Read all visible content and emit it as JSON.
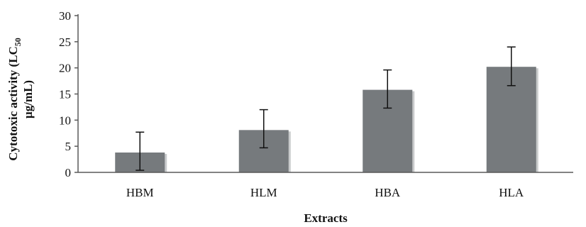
{
  "chart_data": {
    "type": "bar",
    "categories": [
      "HBM",
      "HLM",
      "HBA",
      "HLA"
    ],
    "values": [
      3.8,
      8.1,
      15.8,
      20.2
    ],
    "error_low": [
      0.4,
      4.7,
      12.3,
      16.6
    ],
    "error_high": [
      7.7,
      12.0,
      19.6,
      24.0
    ],
    "xlabel": "Extracts",
    "ylabel_line1": "Cytotoxic activity (LC",
    "ylabel_subscript": "50",
    "ylabel_line2": "µg/mL)",
    "ylim": [
      0,
      30
    ],
    "yticks": [
      "0",
      "5",
      "10",
      "15",
      "20",
      "25",
      "30"
    ],
    "grid": false,
    "bar_color": "#767a7d",
    "error_bar_color": "#111111"
  }
}
